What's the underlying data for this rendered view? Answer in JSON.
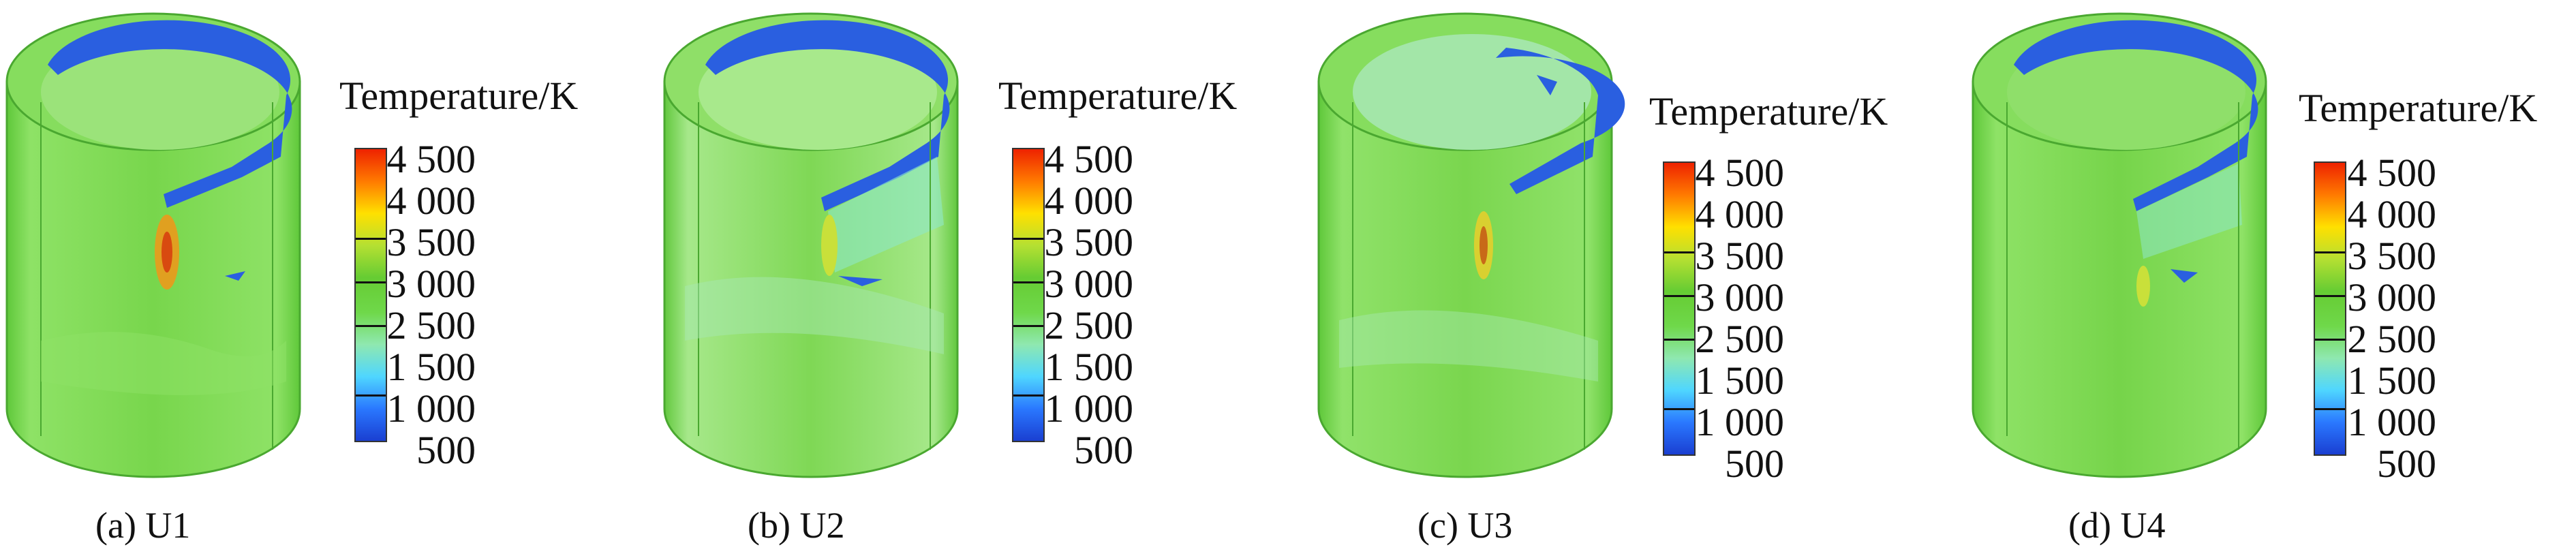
{
  "colorbar_title": "Temperature/K",
  "colorbar_ticks": [
    "4 500",
    "4 000",
    "3 500",
    "3 000",
    "2 500",
    "1 500",
    "1 000",
    "500"
  ],
  "colorbar_gradient": [
    "#1a3fd1",
    "#2a78ff",
    "#4fd6ff",
    "#8fe8b0",
    "#6fd84a",
    "#66cc33",
    "#b5e032",
    "#ffe000",
    "#ff7a00",
    "#ee2200"
  ],
  "panels": [
    {
      "caption": "(a) U1"
    },
    {
      "caption": "(b) U2"
    },
    {
      "caption": "(c) U3"
    },
    {
      "caption": "(d) U4"
    }
  ],
  "colors": {
    "wall_green": "#79d84e",
    "wall_light": "#9be37a",
    "ring_blue": "#2a5fe0",
    "hot_spot": "#e88a1c"
  }
}
